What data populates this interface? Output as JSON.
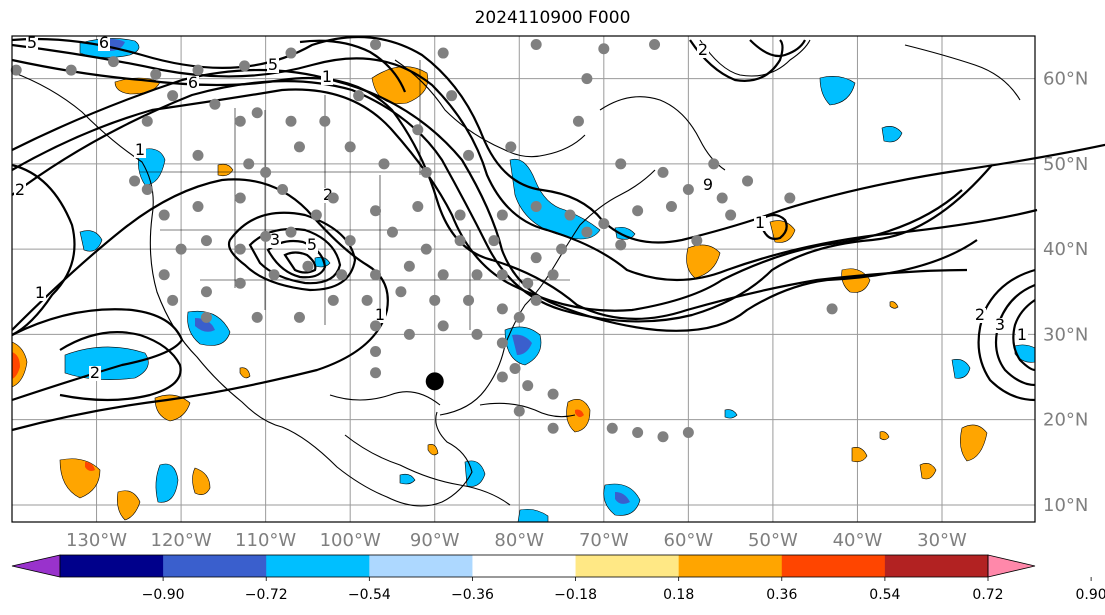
{
  "title": "2024110900 F000",
  "map": {
    "lon_labels": [
      "130°W",
      "120°W",
      "110°W",
      "100°W",
      "90°W",
      "80°W",
      "70°W",
      "60°W",
      "50°W",
      "40°W",
      "30°W"
    ],
    "lat_labels": [
      "60°N",
      "50°N",
      "40°N",
      "30°N",
      "20°N",
      "10°N"
    ],
    "lon_range": [
      -140,
      -19
    ],
    "lat_range": [
      8,
      65
    ],
    "grid": true,
    "storm_marker": {
      "lon": -90.0,
      "lat": 24.5
    },
    "contour_labels": [
      "5",
      "6",
      "6",
      "5",
      "1",
      "2",
      "2",
      "3",
      "5",
      "1",
      "2",
      "1",
      "2",
      "3",
      "1",
      "2",
      "1",
      "1",
      "9"
    ]
  },
  "colorbar": {
    "ticks": [
      "−0.90",
      "−0.72",
      "−0.54",
      "−0.36",
      "−0.18",
      "0.18",
      "0.36",
      "0.54",
      "0.72",
      "0.90"
    ],
    "colors": [
      "#9932CC",
      "#00008B",
      "#3A5FCD",
      "#00BFFF",
      "#ADD8FF",
      "#FFFFFF",
      "#FFE885",
      "#FFA500",
      "#FF4500",
      "#B22222",
      "#FF88AA"
    ]
  }
}
